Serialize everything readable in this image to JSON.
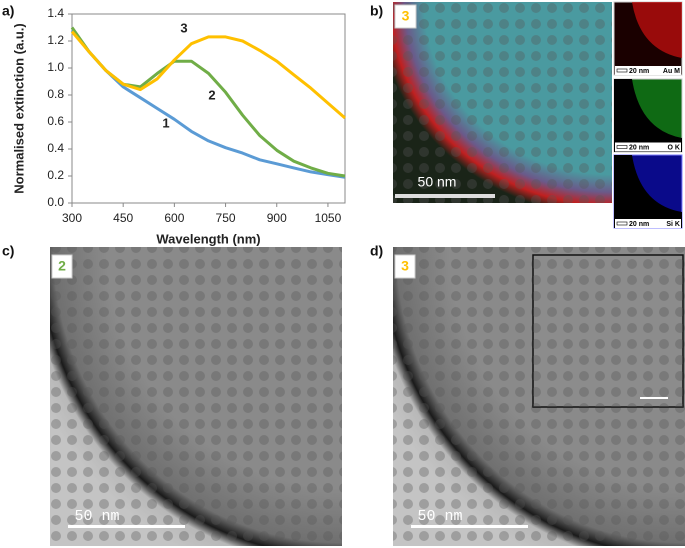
{
  "chart_data": {
    "type": "line",
    "panel_label": "a)",
    "xlabel": "Wavelength (nm)",
    "ylabel": "Normalised extinction (a.u.)",
    "x": [
      300,
      350,
      400,
      450,
      500,
      550,
      600,
      650,
      700,
      750,
      800,
      850,
      900,
      950,
      1000,
      1050,
      1100
    ],
    "series": [
      {
        "name": "1",
        "color": "#5b9bd5",
        "values": [
          1.28,
          1.12,
          0.98,
          0.86,
          0.78,
          0.7,
          0.62,
          0.53,
          0.46,
          0.41,
          0.37,
          0.32,
          0.29,
          0.26,
          0.23,
          0.21,
          0.19
        ]
      },
      {
        "name": "2",
        "color": "#70ad47",
        "values": [
          1.3,
          1.12,
          0.98,
          0.88,
          0.86,
          0.96,
          1.05,
          1.05,
          0.96,
          0.82,
          0.65,
          0.5,
          0.39,
          0.31,
          0.26,
          0.22,
          0.2
        ]
      },
      {
        "name": "3",
        "color": "#ffc000",
        "values": [
          1.27,
          1.12,
          0.98,
          0.88,
          0.84,
          0.92,
          1.06,
          1.18,
          1.23,
          1.23,
          1.2,
          1.13,
          1.05,
          0.95,
          0.85,
          0.74,
          0.63
        ]
      }
    ],
    "xlim": [
      300,
      1100
    ],
    "ylim": [
      0,
      1.4
    ],
    "xticks": [
      300,
      450,
      600,
      750,
      900,
      1050
    ],
    "yticks": [
      {
        "value": 0,
        "label": "0.0"
      },
      0.2,
      0.4,
      0.6,
      0.8,
      {
        "value": 1,
        "label": "1.0"
      },
      1.2,
      1.4
    ]
  },
  "panels": [
    {
      "label": "b)",
      "badge": "3",
      "scale": "50 nm",
      "maps": [
        {
          "scale": "20 nm",
          "element": "Au M"
        },
        {
          "scale": "20 nm",
          "element": "O K"
        },
        {
          "scale": "20 nm",
          "element": "Si K"
        }
      ]
    },
    {
      "label": "c)",
      "badge": "2",
      "scale": "50 nm"
    },
    {
      "label": "d)",
      "badge": "3",
      "scale": "50 nm"
    }
  ]
}
